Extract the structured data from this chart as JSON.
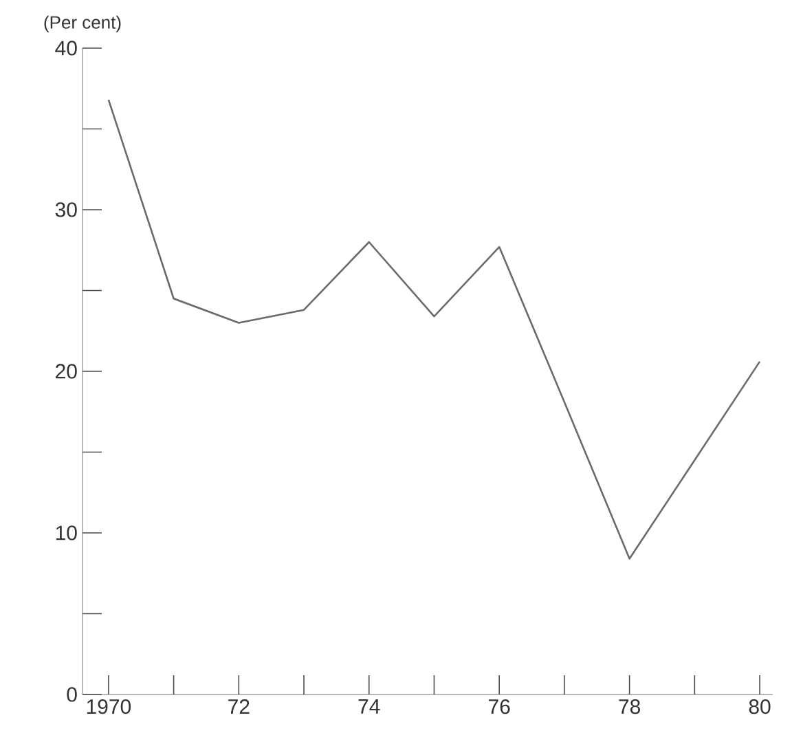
{
  "chart_data": {
    "type": "line",
    "ylabel": "(Per cent)",
    "x": [
      1970,
      1971,
      1972,
      1973,
      1974,
      1975,
      1976,
      1977,
      1978,
      1979,
      1980
    ],
    "series": [
      {
        "color": "#6b6b6b",
        "values": [
          36.8,
          24.5,
          23.0,
          23.8,
          28.0,
          23.4,
          27.7,
          18.1,
          8.4,
          14.5,
          20.6
        ]
      }
    ],
    "xlim": [
      1969.6,
      1980.2
    ],
    "ylim": [
      0,
      40
    ],
    "xticks": [
      {
        "value": 1970,
        "label": "1970"
      },
      {
        "value": 1971,
        "label": null
      },
      {
        "value": 1972,
        "label": "72"
      },
      {
        "value": 1973,
        "label": null
      },
      {
        "value": 1974,
        "label": "74"
      },
      {
        "value": 1975,
        "label": null
      },
      {
        "value": 1976,
        "label": "76"
      },
      {
        "value": 1977,
        "label": null
      },
      {
        "value": 1978,
        "label": "78"
      },
      {
        "value": 1979,
        "label": null
      },
      {
        "value": 1980,
        "label": "80"
      }
    ],
    "yticks": [
      0,
      {
        "value": 5,
        "label": null
      },
      10,
      {
        "value": 15,
        "label": null
      },
      20,
      {
        "value": 25,
        "label": null
      },
      30,
      {
        "value": 35,
        "label": null
      },
      40
    ],
    "grid": false,
    "legend": false,
    "marker": "none",
    "line_style": "solid"
  }
}
